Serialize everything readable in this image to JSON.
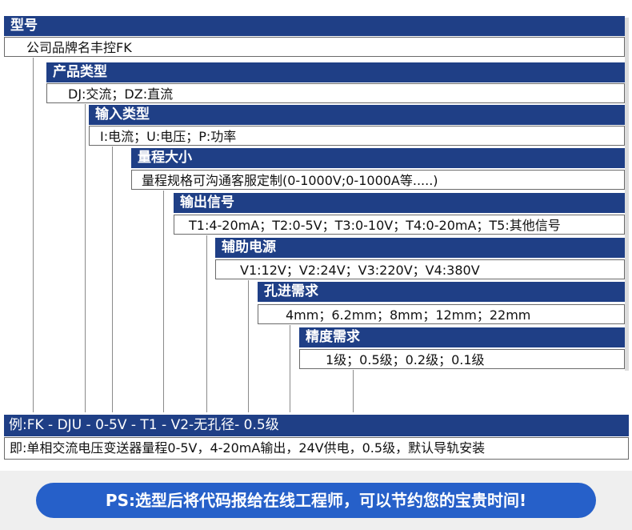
{
  "rows": [
    {
      "label": "型号",
      "value": "公司品牌名丰控FK"
    },
    {
      "label": "产品类型",
      "value": "DJ:交流；DZ:直流"
    },
    {
      "label": "输入类型",
      "value": "I:电流；U:电压；P:功率"
    },
    {
      "label": "量程大小",
      "value": "量程规格可沟通客服定制(0-1000V;0-1000A等.....)"
    },
    {
      "label": "输出信号",
      "value": "T1:4-20mA；T2:0-5V；T3:0-10V；T4:0-20mA；T5:其他信号"
    },
    {
      "label": "辅助电源",
      "value": "V1:12V；V2:24V；V3:220V；V4:380V"
    },
    {
      "label": "孔进需求",
      "value": "4mm；6.2mm；8mm；12mm；22mm"
    },
    {
      "label": "精度需求",
      "value": "1级；0.5级；0.2级；0.1级"
    }
  ],
  "example": {
    "code": "例:FK -   DJU  -  0-5V - T1  -  V2-无孔径- 0.5级",
    "description": "即:单相交流电压变送器量程0-5V，4-20mA输出，24V供电，0.5级，默认导轨安装"
  },
  "ps_banner": "PS:选型后将代码报给在线工程师，可以节约您的宝贵时间!",
  "colors": {
    "header_bg": "#1f3f86",
    "banner_bg": "#2660c9",
    "line": "#8a8a8a"
  }
}
